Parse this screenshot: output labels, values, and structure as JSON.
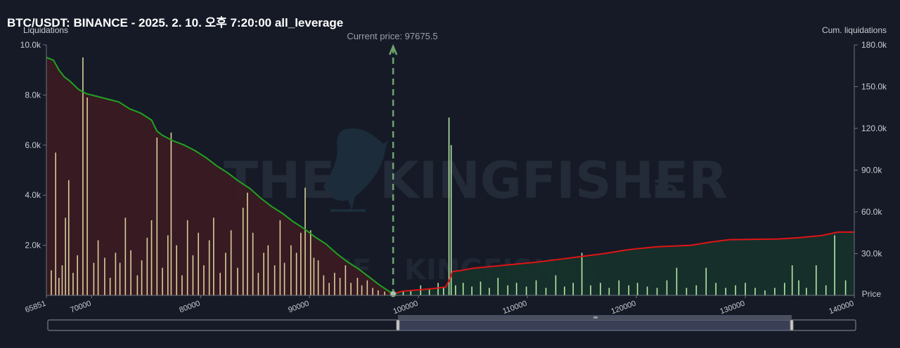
{
  "header": {
    "title": "BTC/USDT: BINANCE - 2025. 2. 10. 오후 7:20:00 all_leverage"
  },
  "axes": {
    "left_title": "Liquidations",
    "right_title": "Cum. liquidations",
    "x_title": "Price"
  },
  "current_price_label": "Current price: 97675.5",
  "watermark": {
    "text": "THE KINGFISHER",
    "suffix": ".io",
    "icon": "kingfisher-bird-logo"
  },
  "scrollbar": {
    "handle_icon": "grip-icon",
    "range_start": 97675.5,
    "range_end": 140000
  },
  "colors": {
    "background": "#151a26",
    "long_cum_line": "#21a321",
    "short_cum_line": "#e01515",
    "long_fill": "#3a1a22",
    "short_fill": "#16302a",
    "long_bars": "#d6cf9a",
    "short_bars": "#b5e8a8",
    "current_price": "#6da56d"
  },
  "chart_data": {
    "type": "bar",
    "x_range": [
      65851,
      140000
    ],
    "x_ticks": [
      65851,
      70000,
      80000,
      90000,
      100000,
      110000,
      120000,
      130000,
      140000
    ],
    "y_left": {
      "label": "Liquidations",
      "range": [
        0,
        10000
      ],
      "ticks": [
        "2.0k",
        "4.0k",
        "6.0k",
        "8.0k",
        "10.0k"
      ],
      "tick_values": [
        2000,
        4000,
        6000,
        8000,
        10000
      ]
    },
    "y_right": {
      "label": "Cum. liquidations",
      "range": [
        0,
        180000
      ],
      "ticks": [
        "30.0k",
        "60.0k",
        "90.0k",
        "120.0k",
        "150.0k",
        "180.0k"
      ],
      "tick_values": [
        30000,
        60000,
        90000,
        120000,
        150000,
        180000
      ]
    },
    "current_price": 97675.5,
    "grid": false,
    "series": [
      {
        "name": "long",
        "kind": "cumulative",
        "points": [
          [
            65851,
            171000
          ],
          [
            66500,
            169000
          ],
          [
            67000,
            162000
          ],
          [
            67500,
            157000
          ],
          [
            68000,
            154000
          ],
          [
            68800,
            148000
          ],
          [
            69500,
            145000
          ],
          [
            70500,
            143000
          ],
          [
            71500,
            141000
          ],
          [
            72500,
            139000
          ],
          [
            73500,
            134000
          ],
          [
            74500,
            131000
          ],
          [
            75500,
            126000
          ],
          [
            76000,
            118000
          ],
          [
            76500,
            115000
          ],
          [
            77500,
            111000
          ],
          [
            78500,
            108000
          ],
          [
            79500,
            104000
          ],
          [
            80500,
            99000
          ],
          [
            81500,
            93000
          ],
          [
            82500,
            88000
          ],
          [
            83500,
            82000
          ],
          [
            84500,
            77000
          ],
          [
            85500,
            70000
          ],
          [
            86500,
            64000
          ],
          [
            87500,
            59000
          ],
          [
            88500,
            53000
          ],
          [
            89500,
            48000
          ],
          [
            90500,
            42000
          ],
          [
            91500,
            37000
          ],
          [
            92500,
            30000
          ],
          [
            93500,
            24000
          ],
          [
            94500,
            19000
          ],
          [
            95500,
            13000
          ],
          [
            96500,
            7000
          ],
          [
            97675.5,
            1000
          ]
        ]
      },
      {
        "name": "short",
        "kind": "cumulative",
        "points": [
          [
            97675.5,
            1000
          ],
          [
            98500,
            3000
          ],
          [
            100000,
            4000
          ],
          [
            101500,
            5000
          ],
          [
            102500,
            6000
          ],
          [
            102900,
            12000
          ],
          [
            103100,
            17000
          ],
          [
            104000,
            18000
          ],
          [
            105000,
            19500
          ],
          [
            107000,
            21000
          ],
          [
            109000,
            22500
          ],
          [
            111000,
            24000
          ],
          [
            113000,
            26000
          ],
          [
            115000,
            28000
          ],
          [
            117000,
            30000
          ],
          [
            119000,
            32500
          ],
          [
            120000,
            33500
          ],
          [
            122000,
            35000
          ],
          [
            125000,
            36000
          ],
          [
            127000,
            38500
          ],
          [
            128500,
            40000
          ],
          [
            133000,
            40500
          ],
          [
            135000,
            41500
          ],
          [
            137000,
            43000
          ],
          [
            138500,
            45500
          ],
          [
            140000,
            45500
          ]
        ]
      },
      {
        "name": "long_liquidations",
        "kind": "bars",
        "points": [
          [
            66300,
            1000
          ],
          [
            66700,
            5700
          ],
          [
            67000,
            700
          ],
          [
            67300,
            1200
          ],
          [
            67600,
            3100
          ],
          [
            67900,
            4600
          ],
          [
            68300,
            900
          ],
          [
            68700,
            1600
          ],
          [
            69200,
            9500
          ],
          [
            69600,
            7900
          ],
          [
            70200,
            1300
          ],
          [
            70600,
            2200
          ],
          [
            71200,
            1500
          ],
          [
            71700,
            700
          ],
          [
            72200,
            1700
          ],
          [
            72600,
            1300
          ],
          [
            73100,
            3100
          ],
          [
            73600,
            1800
          ],
          [
            74200,
            800
          ],
          [
            74600,
            1400
          ],
          [
            75100,
            2300
          ],
          [
            75500,
            3000
          ],
          [
            76000,
            6300
          ],
          [
            76500,
            1100
          ],
          [
            77000,
            2400
          ],
          [
            77300,
            6500
          ],
          [
            77800,
            2000
          ],
          [
            78300,
            800
          ],
          [
            78800,
            3000
          ],
          [
            79300,
            1600
          ],
          [
            79800,
            2500
          ],
          [
            80300,
            1200
          ],
          [
            80800,
            2200
          ],
          [
            81200,
            3100
          ],
          [
            81800,
            900
          ],
          [
            82300,
            1700
          ],
          [
            82800,
            2600
          ],
          [
            83400,
            1100
          ],
          [
            83900,
            3500
          ],
          [
            84300,
            4100
          ],
          [
            84800,
            2500
          ],
          [
            85300,
            900
          ],
          [
            85800,
            1700
          ],
          [
            86200,
            2000
          ],
          [
            86800,
            1200
          ],
          [
            87300,
            3000
          ],
          [
            87700,
            1300
          ],
          [
            88300,
            2000
          ],
          [
            88800,
            1700
          ],
          [
            89200,
            2500
          ],
          [
            89600,
            4300
          ],
          [
            90100,
            2600
          ],
          [
            90400,
            1500
          ],
          [
            90800,
            1400
          ],
          [
            91300,
            800
          ],
          [
            91800,
            500
          ],
          [
            92300,
            900
          ],
          [
            92800,
            700
          ],
          [
            93300,
            1200
          ],
          [
            93800,
            500
          ],
          [
            94400,
            700
          ],
          [
            94800,
            400
          ],
          [
            95300,
            600
          ],
          [
            95800,
            300
          ],
          [
            96300,
            200
          ],
          [
            96900,
            150
          ]
        ]
      },
      {
        "name": "short_liquidations",
        "kind": "bars",
        "points": [
          [
            98600,
            150
          ],
          [
            99300,
            200
          ],
          [
            100200,
            400
          ],
          [
            101000,
            250
          ],
          [
            101800,
            500
          ],
          [
            102300,
            300
          ],
          [
            102800,
            7100
          ],
          [
            103000,
            6000
          ],
          [
            103400,
            400
          ],
          [
            104100,
            500
          ],
          [
            104900,
            350
          ],
          [
            105700,
            550
          ],
          [
            106500,
            300
          ],
          [
            107300,
            700
          ],
          [
            108200,
            400
          ],
          [
            109000,
            500
          ],
          [
            109900,
            350
          ],
          [
            110800,
            600
          ],
          [
            111700,
            300
          ],
          [
            112600,
            800
          ],
          [
            113400,
            350
          ],
          [
            114200,
            500
          ],
          [
            115000,
            1700
          ],
          [
            115800,
            400
          ],
          [
            116700,
            500
          ],
          [
            117500,
            300
          ],
          [
            118400,
            600
          ],
          [
            119300,
            400
          ],
          [
            120100,
            500
          ],
          [
            121000,
            350
          ],
          [
            121900,
            300
          ],
          [
            122800,
            600
          ],
          [
            123700,
            1100
          ],
          [
            124600,
            300
          ],
          [
            125500,
            400
          ],
          [
            126400,
            1100
          ],
          [
            127300,
            500
          ],
          [
            128200,
            300
          ],
          [
            129100,
            400
          ],
          [
            130000,
            500
          ],
          [
            130900,
            300
          ],
          [
            131800,
            200
          ],
          [
            132700,
            300
          ],
          [
            133600,
            500
          ],
          [
            134300,
            1200
          ],
          [
            134900,
            600
          ],
          [
            135600,
            300
          ],
          [
            136500,
            1200
          ],
          [
            137400,
            400
          ],
          [
            138200,
            2400
          ],
          [
            139200,
            600
          ]
        ]
      }
    ]
  }
}
